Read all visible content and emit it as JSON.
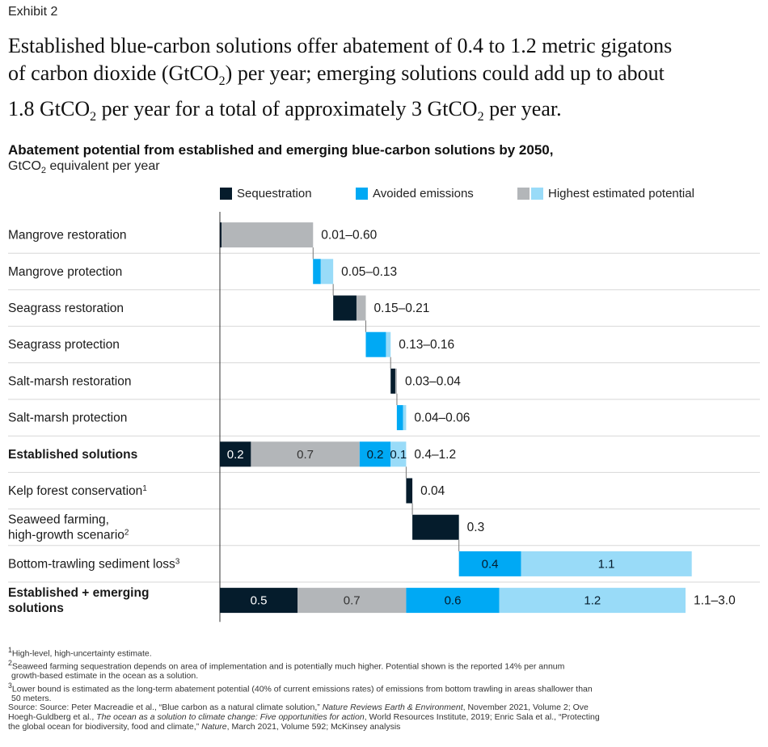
{
  "exhibit_label": "Exhibit 2",
  "headline": {
    "l1": "Established blue-carbon solutions offer abatement of 0.4 to 1.2 metric gigatons",
    "l2a": "of carbon dioxide (GtCO",
    "l2sub": "2",
    "l2b": ") per year; emerging solutions could add up to about",
    "l3a": "1.8 GtCO",
    "l3sub": "2",
    "l3b": " per year for a total of approximately 3 GtCO",
    "l3sub2": "2",
    "l3c": " per year."
  },
  "colors": {
    "sequestration": "#051c2c",
    "avoided": "#00a9f4",
    "highest_gray": "#b3b6b9",
    "highest_light": "#99dbf8",
    "divider": "#d7d7d7",
    "axis": "#333333"
  },
  "chart_data": {
    "type": "waterfall",
    "title": "Abatement potential from established and emerging blue-carbon solutions by 2050,",
    "units_a": "GtCO",
    "units_sub": "2",
    "units_b": " equivalent per year",
    "legend": [
      "Sequestration",
      "Avoided emissions",
      "Highest estimated potential"
    ],
    "rows": [
      {
        "label": "Mangrove restoration",
        "bold": false,
        "range_label": "0.01–0.60",
        "segments": [
          {
            "kind": "seq",
            "value": 0.01
          },
          {
            "kind": "high_gray",
            "value": 0.59
          }
        ]
      },
      {
        "label": "Mangrove protection",
        "bold": false,
        "range_label": "0.05–0.13",
        "segments": [
          {
            "kind": "avoided",
            "value": 0.05
          },
          {
            "kind": "high_light",
            "value": 0.08
          }
        ]
      },
      {
        "label": "Seagrass restoration",
        "bold": false,
        "range_label": "0.15–0.21",
        "segments": [
          {
            "kind": "seq",
            "value": 0.15
          },
          {
            "kind": "high_gray",
            "value": 0.06
          }
        ]
      },
      {
        "label": "Seagrass protection",
        "bold": false,
        "range_label": "0.13–0.16",
        "segments": [
          {
            "kind": "avoided",
            "value": 0.13
          },
          {
            "kind": "high_light",
            "value": 0.03
          }
        ]
      },
      {
        "label": "Salt-marsh restoration",
        "bold": false,
        "range_label": "0.03–0.04",
        "segments": [
          {
            "kind": "seq",
            "value": 0.03
          },
          {
            "kind": "high_gray",
            "value": 0.01
          }
        ]
      },
      {
        "label": "Salt-marsh protection",
        "bold": false,
        "range_label": "0.04–0.06",
        "segments": [
          {
            "kind": "avoided",
            "value": 0.04
          },
          {
            "kind": "high_light",
            "value": 0.02
          }
        ]
      },
      {
        "label": "Established solutions",
        "bold": true,
        "range_label": "0.4–1.2",
        "segments": [
          {
            "kind": "seq",
            "value": 0.2,
            "label": "0.2"
          },
          {
            "kind": "high_gray",
            "value": 0.7,
            "label": "0.7"
          },
          {
            "kind": "avoided",
            "value": 0.2,
            "label": "0.2"
          },
          {
            "kind": "high_light",
            "value": 0.1,
            "label": "0.1"
          }
        ]
      },
      {
        "label": "Kelp forest conservation",
        "label_sup": "1",
        "bold": false,
        "range_label": "0.04",
        "segments": [
          {
            "kind": "seq",
            "value": 0.04
          }
        ]
      },
      {
        "label": "Seaweed farming,",
        "label2": "high-growth scenario",
        "label_sup": "2",
        "bold": false,
        "range_label": "0.3",
        "segments": [
          {
            "kind": "seq",
            "value": 0.3
          }
        ]
      },
      {
        "label": "Bottom-trawling sediment loss",
        "label_sup": "3",
        "bold": false,
        "range_label": "",
        "segments": [
          {
            "kind": "avoided",
            "value": 0.4,
            "label": "0.4"
          },
          {
            "kind": "high_light",
            "value": 1.1,
            "label": "1.1"
          }
        ]
      },
      {
        "label": "Established + emerging",
        "label2": "solutions",
        "bold": true,
        "range_label": "1.1–3.0",
        "segments": [
          {
            "kind": "seq",
            "value": 0.5,
            "label": "0.5"
          },
          {
            "kind": "high_gray",
            "value": 0.7,
            "label": "0.7"
          },
          {
            "kind": "avoided",
            "value": 0.6,
            "label": "0.6"
          },
          {
            "kind": "high_light",
            "value": 1.2,
            "label": "1.2"
          }
        ]
      }
    ],
    "cumulative_starts": [
      0,
      0.6,
      0.73,
      0.94,
      1.1,
      1.14,
      0,
      1.2,
      1.24,
      1.54,
      0
    ],
    "x_range": [
      0,
      3.0
    ]
  },
  "footnotes": {
    "f1": "High-level, high-uncertainty estimate.",
    "f2a": "Seaweed farming sequestration depends on area of implementation and is potentially much higher. Potential shown is the reported 14% per annum",
    "f2b": "growth-based estimate in the ocean as a solution.",
    "f3a": "Lower bound is estimated as the long-term abatement potential (40% of current emissions rates) of emissions from bottom trawling in areas shallower than",
    "f3b": "50 meters.",
    "src1a": "Source: Source: Peter Macreadie et al., “Blue carbon as a natural climate solution,” ",
    "src1i": "Nature Reviews Earth & Environment",
    "src1b": ", November 2021, Volume 2; Ove",
    "src2a": "Hoegh-Guldberg et al., ",
    "src2i": "The ocean as a solution to climate change: Five opportunities for action",
    "src2b": ", World Resources Institute, 2019; Enric Sala et al., “Protecting",
    "src3a": "the global ocean for biodiversity, food and climate,” ",
    "src3i": "Nature",
    "src3b": ", March 2021, Volume 592; McKinsey analysis"
  }
}
